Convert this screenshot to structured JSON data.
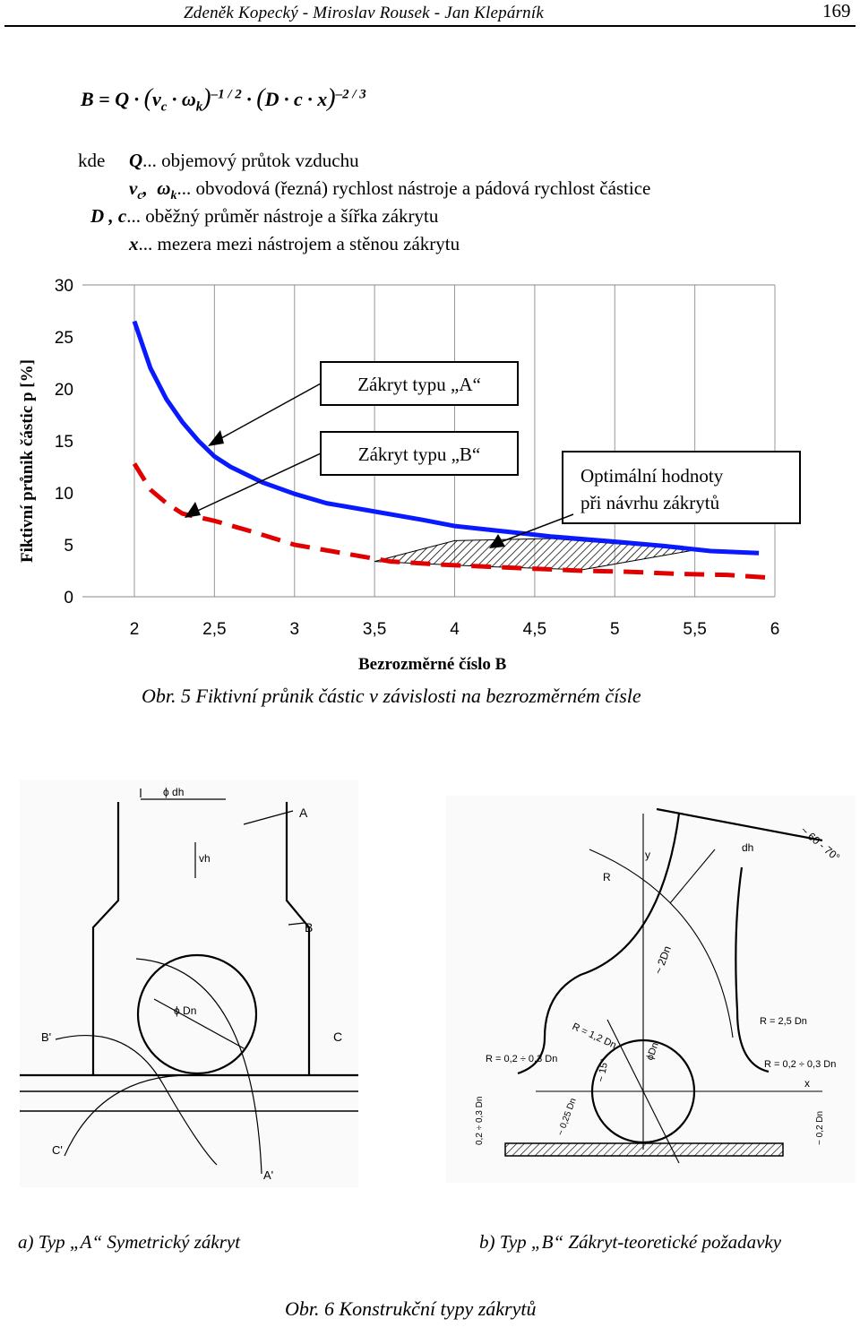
{
  "header": {
    "authors": "Zdeněk Kopecký - Miroslav Rousek - Jan Klepárník",
    "page_number": "169"
  },
  "formula": {
    "text": "B = Q · (v_c · ω_k)^(–1/2) · (D · c · x)^(–2/3)"
  },
  "definitions": {
    "kde_label": "kde",
    "items": [
      {
        "symbol": "Q",
        "text": "... objemový průtok vzduchu"
      },
      {
        "symbol": "v_c, ω_k",
        "text": "... obvodová (řezná) rychlost nástroje a pádová rychlost částice"
      },
      {
        "symbol": "D , c",
        "text": "... oběžný průměr nástroje a šířka zákrytu"
      },
      {
        "symbol": "x",
        "text": "... mezera mezi nástrojem a stěnou zákrytu"
      }
    ]
  },
  "chart_data": {
    "type": "line",
    "xlabel": "Bezrozměrné číslo B",
    "ylabel": "Fiktivní průnik částic p [%]",
    "xlim": [
      2,
      6
    ],
    "ylim": [
      0,
      30
    ],
    "x_ticks": [
      "2",
      "2,5",
      "3",
      "3,5",
      "4",
      "4,5",
      "5",
      "5,5",
      "6"
    ],
    "y_ticks": [
      "0",
      "5",
      "10",
      "15",
      "20",
      "25",
      "30"
    ],
    "grid": "vertical",
    "series": [
      {
        "name": "Zákryt typu „A“",
        "style": "solid",
        "color": "#0a1aff",
        "x": [
          2.0,
          2.1,
          2.2,
          2.3,
          2.4,
          2.5,
          2.6,
          2.8,
          3.0,
          3.2,
          3.5,
          3.8,
          4.0,
          4.3,
          4.6,
          5.0,
          5.3,
          5.6,
          5.9
        ],
        "y": [
          26.5,
          22.0,
          19.0,
          16.8,
          15.0,
          13.5,
          12.5,
          11.0,
          9.9,
          9.0,
          8.2,
          7.4,
          6.8,
          6.3,
          5.8,
          5.3,
          4.9,
          4.4,
          4.2
        ]
      },
      {
        "name": "Zákryt typu „B“",
        "style": "dashed",
        "color": "#e00000",
        "x": [
          2.0,
          2.1,
          2.2,
          2.3,
          2.5,
          2.75,
          3.0,
          3.3,
          3.6,
          3.9,
          4.2,
          4.5,
          4.8,
          5.1,
          5.4,
          5.7,
          6.0
        ],
        "y": [
          12.8,
          10.3,
          9.0,
          8.0,
          7.3,
          6.2,
          5.0,
          4.2,
          3.4,
          3.1,
          2.9,
          2.7,
          2.5,
          2.4,
          2.2,
          2.1,
          1.8
        ]
      }
    ],
    "annotations": [
      "Zákryt typu „A“",
      "Zákryt typu „B“",
      "Optimální hodnoty",
      "při návrhu zákrytů"
    ],
    "shaded_region": {
      "x": [
        3.5,
        5.5
      ],
      "label": "Optimální hodnoty při návrhu zákrytů"
    }
  },
  "figure5_caption": "Obr. 5 Fiktivní průnik částic v závislosti na bezrozměrném čísle",
  "drawing_a": {
    "labels": [
      "ϕ dh",
      "vh",
      "A",
      "B",
      "ϕ Dn",
      "B'",
      "C",
      "C'",
      "A'"
    ]
  },
  "drawing_b": {
    "labels": [
      "~ 60 - 70°",
      "dh",
      "y",
      "R",
      "~ 2Dn",
      "R = 1,2 Dn",
      "R = 2,5 Dn",
      "R = 0,2 ÷ 0,3 Dn",
      "R = 0,2 ÷ 0,3 Dn",
      "ϕDn",
      "~ 15°",
      "x",
      "0,2 ÷ 0,3 Dn",
      "~ 0,2 Dn",
      "~ 0,25 Dn"
    ]
  },
  "subcaption_a": "a) Typ „A“ Symetrický zákryt",
  "subcaption_b": "b) Typ „B“ Zákryt-teoretické požadavky",
  "figure6_caption": "Obr. 6 Konstrukční typy zákrytů"
}
